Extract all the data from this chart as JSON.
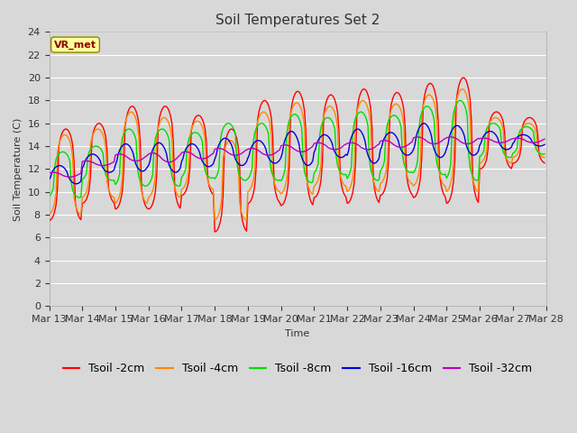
{
  "title": "Soil Temperatures Set 2",
  "xlabel": "Time",
  "ylabel": "Soil Temperature (C)",
  "ylim": [
    0,
    24
  ],
  "yticks": [
    0,
    2,
    4,
    6,
    8,
    10,
    12,
    14,
    16,
    18,
    20,
    22,
    24
  ],
  "n_days": 15,
  "hours_per_day": 24,
  "series_colors": {
    "Tsoil -2cm": "#ff0000",
    "Tsoil -4cm": "#ff8800",
    "Tsoil -8cm": "#00dd00",
    "Tsoil -16cm": "#0000dd",
    "Tsoil -32cm": "#bb00bb"
  },
  "annotation_text": "VR_met",
  "bg_color": "#d8d8d8",
  "plot_bg_color": "#d8d8d8",
  "grid_color": "#ffffff",
  "title_fontsize": 11,
  "label_fontsize": 8,
  "tick_fontsize": 8,
  "legend_fontsize": 9,
  "day_base_temps": [
    11.5,
    12.5,
    13.0,
    13.0,
    13.2,
    13.5,
    13.5,
    13.8,
    14.0,
    14.0,
    14.2,
    14.5,
    14.5,
    14.5,
    14.5
  ],
  "day_amplitudes_2cm": [
    4.0,
    3.5,
    4.5,
    4.5,
    3.5,
    4.5,
    4.5,
    5.0,
    4.5,
    5.0,
    4.5,
    5.0,
    5.5,
    2.5,
    2.0
  ],
  "day_amplitudes_4cm": [
    3.5,
    3.0,
    4.0,
    3.5,
    3.0,
    3.5,
    3.5,
    4.0,
    3.5,
    4.0,
    3.5,
    4.0,
    4.5,
    2.0,
    1.5
  ],
  "day_amplitudes_8cm": [
    2.0,
    1.5,
    2.5,
    2.5,
    2.0,
    2.5,
    2.5,
    3.0,
    2.5,
    3.0,
    2.5,
    3.0,
    3.5,
    1.5,
    1.2
  ],
  "day_amplitudes_16cm": [
    0.8,
    0.8,
    1.2,
    1.3,
    1.0,
    1.2,
    1.0,
    1.5,
    1.0,
    1.5,
    1.0,
    1.5,
    1.3,
    0.8,
    0.5
  ],
  "day_amplitudes_32cm": [
    0.2,
    0.2,
    0.3,
    0.4,
    0.3,
    0.3,
    0.3,
    0.3,
    0.3,
    0.3,
    0.3,
    0.3,
    0.3,
    0.2,
    0.2
  ],
  "phase_2cm": -1.6,
  "phase_4cm": -1.4,
  "phase_8cm": -1.0,
  "phase_16cm": -0.4,
  "phase_32cm": 0.8,
  "peak_sharpness": 3.0
}
